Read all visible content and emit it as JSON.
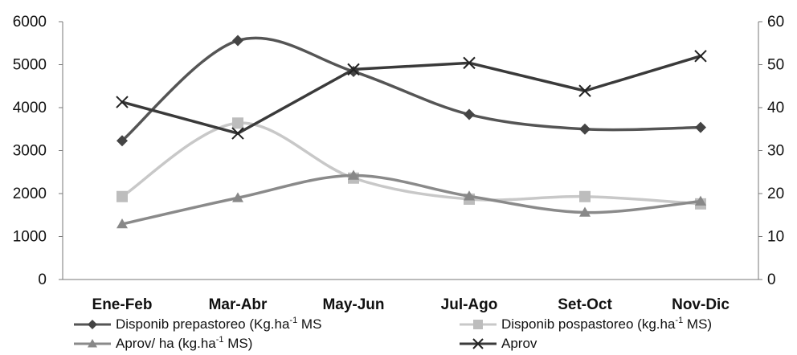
{
  "chart_data": {
    "type": "line",
    "categories": [
      "Ene-Feb",
      "Mar-Abr",
      "May-Jun",
      "Jul-Ago",
      "Set-Oct",
      "Nov-Dic"
    ],
    "y_left": {
      "ticks": [
        "0",
        "1000",
        "2000",
        "3000",
        "4000",
        "5000",
        "6000"
      ],
      "range": [
        0,
        6000
      ]
    },
    "y_right": {
      "ticks": [
        "0",
        "10",
        "20",
        "30",
        "40",
        "50",
        "60"
      ],
      "range": [
        0,
        60
      ]
    },
    "grid": false,
    "legend_position": "bottom",
    "series": [
      {
        "legend": {
          "pre": "Disponib prepastoreo (Kg.ha",
          "sup": "-1",
          "post": " MS"
        },
        "axis": "left",
        "marker": "diamond",
        "color": "#555555",
        "marker_color": "#444444",
        "smooth": true,
        "values": [
          3230,
          5560,
          4840,
          3840,
          3500,
          3540
        ]
      },
      {
        "legend": {
          "pre": "Disponib pospastoreo (kg.ha",
          "sup": "-1",
          "post": " MS)"
        },
        "axis": "left",
        "marker": "square",
        "color": "#c8c8c8",
        "marker_color": "#bdbdbd",
        "smooth": true,
        "values": [
          1930,
          3640,
          2360,
          1870,
          1930,
          1760
        ]
      },
      {
        "legend": {
          "pre": "Aprov/ ha (kg.ha",
          "sup": "-1",
          "post": " MS)"
        },
        "axis": "left",
        "marker": "triangle",
        "color": "#8a8a8a",
        "marker_color": "#888888",
        "smooth": true,
        "values": [
          1290,
          1900,
          2420,
          1940,
          1560,
          1820
        ]
      },
      {
        "legend": {
          "pre": "Aprov",
          "sup": "",
          "post": ""
        },
        "axis": "right",
        "marker": "x",
        "color": "#3a3a3a",
        "marker_color": "#222222",
        "smooth": false,
        "values": [
          41.3,
          34.0,
          48.9,
          50.4,
          43.9,
          52.0
        ]
      }
    ]
  }
}
